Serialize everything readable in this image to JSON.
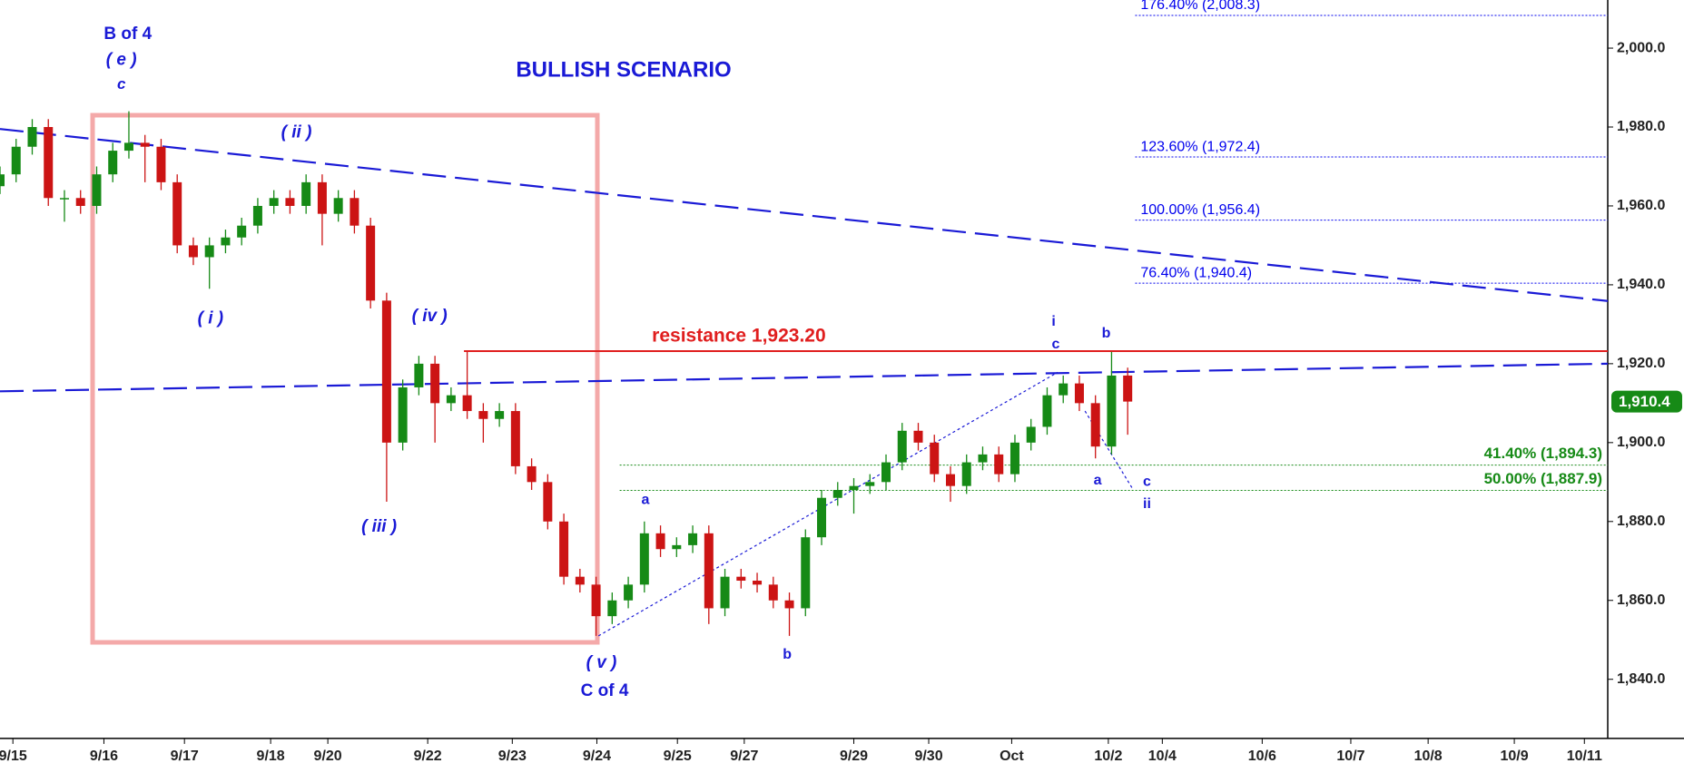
{
  "chart_data": {
    "type": "candlestick",
    "title": "BULLISH SCENARIO",
    "up_color": "#168a16",
    "down_color": "#cc1414",
    "xlim": [
      0,
      199.6
    ],
    "xticks": [
      {
        "value": 1.6,
        "label": "9/15"
      },
      {
        "value": 12.9,
        "label": "9/16"
      },
      {
        "value": 22.9,
        "label": "9/17"
      },
      {
        "value": 33.6,
        "label": "9/18"
      },
      {
        "value": 40.7,
        "label": "9/20"
      },
      {
        "value": 53.1,
        "label": "9/22"
      },
      {
        "value": 63.6,
        "label": "9/23"
      },
      {
        "value": 74.1,
        "label": "9/24"
      },
      {
        "value": 84.1,
        "label": "9/25"
      },
      {
        "value": 92.4,
        "label": "9/27"
      },
      {
        "value": 106,
        "label": "9/29"
      },
      {
        "value": 115.3,
        "label": "9/30"
      },
      {
        "value": 125.6,
        "label": "Oct"
      },
      {
        "value": 137.6,
        "label": "10/2"
      },
      {
        "value": 144.3,
        "label": "10/4"
      },
      {
        "value": 156.7,
        "label": "10/6"
      },
      {
        "value": 167.7,
        "label": "10/7"
      },
      {
        "value": 177.3,
        "label": "10/8"
      },
      {
        "value": 188,
        "label": "10/9"
      },
      {
        "value": 196.7,
        "label": "10/11"
      }
    ],
    "ylim": [
      1825,
      2012.2
    ],
    "yticks": [
      {
        "value": 1840,
        "label": "1,840.0"
      },
      {
        "value": 1860,
        "label": "1,860.0"
      },
      {
        "value": 1880,
        "label": "1,880.0"
      },
      {
        "value": 1900,
        "label": "1,900.0"
      },
      {
        "value": 1920,
        "label": "1,920.0"
      },
      {
        "value": 1940,
        "label": "1,940.0"
      },
      {
        "value": 1960,
        "label": "1,960.0"
      },
      {
        "value": 1980,
        "label": "1,980.0"
      },
      {
        "value": 2000,
        "label": "2,000.0"
      }
    ],
    "candles": {
      "x": [
        0,
        2,
        4,
        6,
        8,
        10,
        12,
        14,
        16,
        18,
        20,
        22,
        24,
        26,
        28,
        30,
        32,
        34,
        36,
        38,
        40,
        42,
        44,
        46,
        48,
        50,
        52,
        54,
        56,
        58,
        60,
        62,
        64,
        66,
        68,
        70,
        72,
        74,
        76,
        78,
        80,
        82,
        84,
        86,
        88,
        90,
        92,
        94,
        96,
        98,
        100,
        102,
        104,
        106,
        108,
        110,
        112,
        114,
        116,
        118,
        120,
        122,
        124,
        126,
        128,
        130,
        132,
        134,
        136,
        138,
        140
      ],
      "open": [
        1965,
        1968,
        1975,
        1980,
        1962,
        1962,
        1960,
        1968,
        1974,
        1976,
        1975,
        1966,
        1950,
        1947,
        1950,
        1952,
        1955,
        1960,
        1962,
        1960,
        1966,
        1958,
        1962,
        1955,
        1936,
        1900,
        1914,
        1920,
        1910,
        1912,
        1908,
        1906,
        1908,
        1894,
        1890,
        1880,
        1866,
        1864,
        1856,
        1860,
        1864,
        1877,
        1873,
        1874,
        1877,
        1858,
        1866,
        1865,
        1864,
        1860,
        1858,
        1876,
        1886,
        1888,
        1889,
        1890,
        1895,
        1903,
        1900,
        1892,
        1889,
        1895,
        1897,
        1892,
        1900,
        1904,
        1912,
        1915,
        1910,
        1899,
        1917
      ],
      "high": [
        1970,
        1977,
        1982,
        1982,
        1964,
        1964,
        1970,
        1976,
        1984,
        1978,
        1977,
        1968,
        1952,
        1952,
        1954,
        1957,
        1962,
        1964,
        1964,
        1968,
        1968,
        1964,
        1964,
        1957,
        1938,
        1916,
        1922,
        1922,
        1914,
        1923,
        1910,
        1910,
        1910,
        1896,
        1892,
        1882,
        1868,
        1866,
        1862,
        1866,
        1880,
        1879,
        1876,
        1879,
        1879,
        1868,
        1868,
        1867,
        1866,
        1862,
        1878,
        1888,
        1890,
        1891,
        1892,
        1897,
        1905,
        1905,
        1902,
        1894,
        1897,
        1899,
        1899,
        1902,
        1906,
        1914,
        1917,
        1917,
        1912,
        1923,
        1919
      ],
      "low": [
        1963,
        1966,
        1973,
        1960,
        1956,
        1958,
        1958,
        1966,
        1972,
        1966,
        1964,
        1948,
        1945,
        1939,
        1948,
        1950,
        1953,
        1958,
        1958,
        1958,
        1950,
        1956,
        1953,
        1934,
        1885,
        1898,
        1912,
        1900,
        1908,
        1906,
        1900,
        1904,
        1892,
        1888,
        1878,
        1864,
        1862,
        1851,
        1854,
        1858,
        1862,
        1871,
        1871,
        1872,
        1854,
        1856,
        1863,
        1862,
        1858,
        1851,
        1856,
        1874,
        1884,
        1882,
        1887,
        1888,
        1893,
        1898,
        1890,
        1885,
        1887,
        1893,
        1890,
        1890,
        1898,
        1902,
        1910,
        1908,
        1896,
        1897,
        1902
      ],
      "close": [
        1968,
        1975,
        1980,
        1962,
        1962,
        1960,
        1968,
        1974,
        1976,
        1975,
        1966,
        1950,
        1947,
        1950,
        1952,
        1955,
        1960,
        1962,
        1960,
        1966,
        1958,
        1962,
        1955,
        1936,
        1900,
        1914,
        1920,
        1910,
        1912,
        1908,
        1906,
        1908,
        1894,
        1890,
        1880,
        1866,
        1864,
        1856,
        1860,
        1864,
        1877,
        1873,
        1874,
        1877,
        1858,
        1866,
        1865,
        1864,
        1860,
        1858,
        1876,
        1886,
        1888,
        1889,
        1890,
        1895,
        1903,
        1900,
        1892,
        1889,
        1895,
        1897,
        1892,
        1900,
        1904,
        1912,
        1915,
        1910,
        1899,
        1917,
        1910.4
      ]
    },
    "last_price": {
      "value": 1910.4,
      "label": "1,910.4",
      "color": "#168a16"
    },
    "resistance": {
      "value": 1923.2,
      "label": "resistance 1,923.20",
      "color": "#e01e1e"
    },
    "fib_levels": [
      {
        "value": 2008.3,
        "label": "176.40% (2,008.3)",
        "color": "#0000ee"
      },
      {
        "value": 1972.4,
        "label": "123.60% (1,972.4)",
        "color": "#0000ee"
      },
      {
        "value": 1956.4,
        "label": "100.00% (1,956.4)",
        "color": "#0000ee"
      },
      {
        "value": 1940.4,
        "label": "76.40% (1,940.4)",
        "color": "#0000ee"
      },
      {
        "value": 1894.3,
        "label": "41.40% (1,894.3)",
        "color": "#168a16"
      },
      {
        "value": 1887.9,
        "label": "50.00% (1,887.9)",
        "color": "#168a16"
      }
    ],
    "trendlines": [
      {
        "x": [
          0,
          199.6
        ],
        "y": [
          1979.5,
          1935.9
        ],
        "color": "#1a1ad6",
        "style": "dashed"
      },
      {
        "x": [
          0,
          199.6
        ],
        "y": [
          1913,
          1920
        ],
        "color": "#1a1ad6",
        "style": "dashed"
      },
      {
        "x": [
          74.3,
          131.3
        ],
        "y": [
          1851,
          1917.8
        ],
        "color": "#1a1ad6",
        "style": "dotted"
      },
      {
        "x": [
          134.7,
          140.7
        ],
        "y": [
          1908,
          1888
        ],
        "color": "#1a1ad6",
        "style": "dotted"
      }
    ],
    "annotations": [
      "B of 4",
      "( e )",
      "c",
      "( ii )",
      "( i )",
      "( iv )",
      "( iii )",
      "( v )",
      "C of 4",
      "a",
      "b",
      "i",
      "c",
      "b",
      "a",
      "c",
      "ii"
    ]
  }
}
